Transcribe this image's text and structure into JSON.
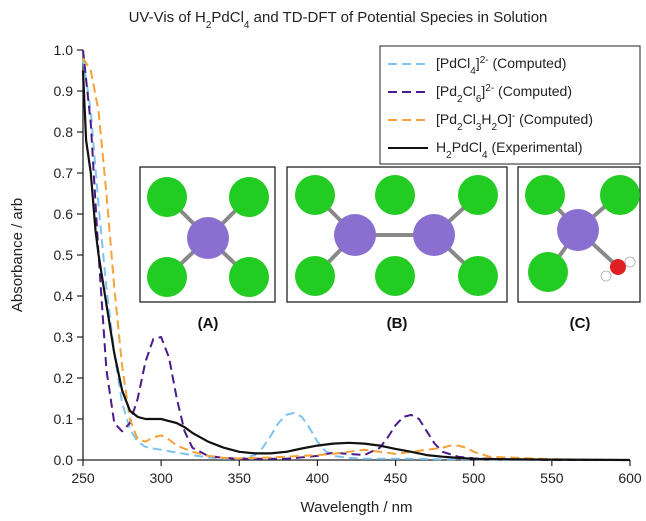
{
  "chart_data": {
    "type": "line",
    "title": {
      "main": "UV-Vis of H",
      "sub1": "2",
      "mid1": "PdCl",
      "sub2": "4",
      "rest": " and TD-DFT of Potential Species in Solution"
    },
    "xlabel": "Wavelength / nm",
    "ylabel": "Absorbance / arb",
    "xlim": [
      250,
      600
    ],
    "ylim": [
      0,
      1.0
    ],
    "xticks": [
      250,
      300,
      350,
      400,
      450,
      500,
      550,
      600
    ],
    "yticks": [
      0.0,
      0.1,
      0.2,
      0.3,
      0.4,
      0.5,
      0.6,
      0.7,
      0.8,
      0.9,
      1.0
    ],
    "legend_position": "top-right",
    "series": [
      {
        "legend_parts": [
          [
            "[PdCl",
            "n"
          ],
          [
            "4",
            "sub"
          ],
          [
            "]",
            "n"
          ],
          [
            "2-",
            "sup"
          ],
          [
            " (Computed)",
            "n"
          ]
        ],
        "color": "#7fc4ee",
        "dash": "9,5",
        "x": [
          250,
          255,
          260,
          265,
          270,
          275,
          280,
          285,
          290,
          295,
          300,
          310,
          320,
          330,
          340,
          350,
          360,
          365,
          370,
          375,
          380,
          385,
          390,
          395,
          400,
          405,
          410,
          420,
          430,
          440,
          450,
          460,
          480,
          500,
          520,
          550,
          600
        ],
        "y": [
          0.98,
          0.85,
          0.62,
          0.42,
          0.26,
          0.14,
          0.075,
          0.045,
          0.032,
          0.028,
          0.025,
          0.018,
          0.012,
          0.006,
          0.003,
          0.003,
          0.012,
          0.03,
          0.058,
          0.09,
          0.11,
          0.115,
          0.105,
          0.078,
          0.045,
          0.022,
          0.01,
          0.005,
          0.003,
          0.003,
          0.003,
          0.003,
          0.002,
          0.002,
          0.001,
          0.001,
          0.0
        ]
      },
      {
        "legend_parts": [
          [
            "[Pd",
            "n"
          ],
          [
            "2",
            "sub"
          ],
          [
            "Cl",
            "n"
          ],
          [
            "6",
            "sub"
          ],
          [
            "]",
            "n"
          ],
          [
            "2-",
            "sup"
          ],
          [
            " (Computed)",
            "n"
          ]
        ],
        "color": "#4b1a8c",
        "dash": "9,5",
        "x": [
          250,
          255,
          260,
          265,
          270,
          275,
          280,
          285,
          290,
          295,
          300,
          305,
          310,
          315,
          320,
          330,
          340,
          350,
          360,
          380,
          400,
          410,
          420,
          430,
          440,
          445,
          450,
          455,
          460,
          465,
          470,
          475,
          480,
          490,
          500,
          550,
          600
        ],
        "y": [
          1.0,
          0.82,
          0.5,
          0.22,
          0.09,
          0.07,
          0.09,
          0.15,
          0.24,
          0.295,
          0.3,
          0.25,
          0.15,
          0.07,
          0.03,
          0.01,
          0.005,
          0.003,
          0.003,
          0.003,
          0.01,
          0.018,
          0.015,
          0.012,
          0.03,
          0.055,
          0.085,
          0.105,
          0.11,
          0.1,
          0.07,
          0.04,
          0.02,
          0.008,
          0.004,
          0.0,
          0.0
        ]
      },
      {
        "legend_parts": [
          [
            "[Pd",
            "n"
          ],
          [
            "2",
            "sub"
          ],
          [
            "Cl",
            "n"
          ],
          [
            "3",
            "sub"
          ],
          [
            "H",
            "n"
          ],
          [
            "2",
            "sub"
          ],
          [
            "O]",
            "n"
          ],
          [
            "-",
            "sup"
          ],
          [
            " (Computed)",
            "n"
          ]
        ],
        "color": "#f5a23a",
        "dash": "9,5",
        "x": [
          250,
          255,
          260,
          265,
          270,
          275,
          280,
          285,
          290,
          295,
          300,
          305,
          310,
          320,
          330,
          340,
          350,
          360,
          370,
          380,
          390,
          400,
          410,
          420,
          430,
          440,
          450,
          460,
          470,
          480,
          485,
          490,
          495,
          500,
          510,
          550,
          600
        ],
        "y": [
          0.98,
          0.95,
          0.85,
          0.65,
          0.42,
          0.23,
          0.1,
          0.05,
          0.045,
          0.055,
          0.06,
          0.05,
          0.035,
          0.02,
          0.01,
          0.005,
          0.004,
          0.005,
          0.006,
          0.008,
          0.01,
          0.012,
          0.015,
          0.02,
          0.025,
          0.02,
          0.015,
          0.02,
          0.025,
          0.03,
          0.035,
          0.035,
          0.03,
          0.02,
          0.008,
          0.002,
          0.0
        ]
      },
      {
        "legend_parts": [
          [
            "H",
            "n"
          ],
          [
            "2",
            "sub"
          ],
          [
            "PdCl",
            "n"
          ],
          [
            "4",
            "sub"
          ],
          [
            " (Experimental)",
            "n"
          ]
        ],
        "color": "#111111",
        "dash": "",
        "x": [
          250,
          252,
          255,
          258,
          260,
          265,
          270,
          275,
          280,
          285,
          290,
          295,
          300,
          305,
          310,
          315,
          320,
          330,
          340,
          350,
          360,
          370,
          380,
          390,
          400,
          410,
          420,
          430,
          440,
          450,
          460,
          470,
          480,
          490,
          500,
          520,
          550,
          600
        ],
        "y": [
          0.95,
          0.78,
          0.7,
          0.56,
          0.5,
          0.38,
          0.26,
          0.17,
          0.12,
          0.105,
          0.1,
          0.1,
          0.1,
          0.095,
          0.09,
          0.08,
          0.066,
          0.045,
          0.03,
          0.02,
          0.016,
          0.016,
          0.02,
          0.028,
          0.035,
          0.04,
          0.042,
          0.04,
          0.035,
          0.027,
          0.02,
          0.012,
          0.008,
          0.005,
          0.003,
          0.002,
          0.001,
          0.0
        ]
      }
    ],
    "insets": [
      {
        "label": "(A)",
        "structure": "PdCl4 square planar",
        "atoms": {
          "center": "#8a6fd0",
          "ligand": "#22cc22"
        }
      },
      {
        "label": "(B)",
        "structure": "Pd2Cl6 dimer",
        "atoms": {
          "center": "#8a6fd0",
          "ligand": "#22cc22"
        }
      },
      {
        "label": "(C)",
        "structure": "Pd2Cl3H2O fragment",
        "atoms": {
          "center": "#8a6fd0",
          "ligand": "#22cc22",
          "oxygen": "#e02020",
          "hydrogen": "#ffffff"
        }
      }
    ]
  }
}
